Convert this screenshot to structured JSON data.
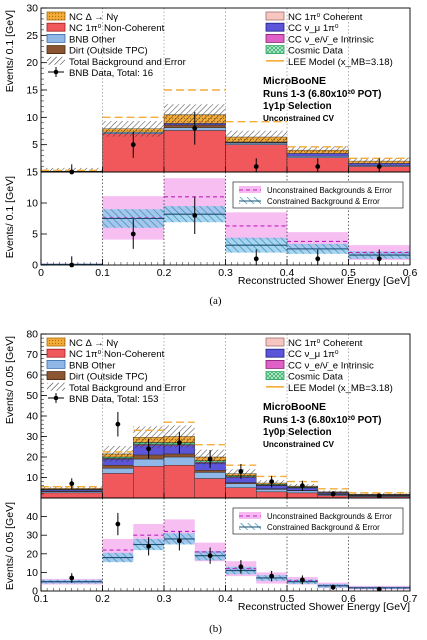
{
  "chart_data": [
    {
      "type": "bar",
      "caption": "(a)",
      "xlabel": "Reconstructed Shower Energy [GeV]",
      "ylabel_top": "Events/ 0.1 [GeV]",
      "ylabel_bottom": "Events/ 0.1 [GeV]",
      "xlim": [
        0,
        0.6
      ],
      "ylim_top": [
        0,
        30
      ],
      "ylim_bottom": [
        0,
        15
      ],
      "xticks": [
        0,
        0.1,
        0.2,
        0.3,
        0.4,
        0.5,
        0.6
      ],
      "xtick_labels": [
        "0",
        "0.1",
        "0.2",
        "0.3",
        "0.4",
        "0.5",
        "0.6"
      ],
      "yticks_top": [
        5,
        10,
        15,
        20,
        25,
        30
      ],
      "yticks_bottom": [
        0,
        5,
        10,
        15
      ],
      "bins": [
        [
          0,
          0.1
        ],
        [
          0.1,
          0.2
        ],
        [
          0.2,
          0.3
        ],
        [
          0.3,
          0.4
        ],
        [
          0.4,
          0.5
        ],
        [
          0.5,
          0.6
        ]
      ],
      "stack": [
        {
          "name": "NC 1π⁰ Non-Coherent",
          "color": "#f0585c",
          "values": [
            0.1,
            7.0,
            7.6,
            5.0,
            2.6,
            1.0
          ]
        },
        {
          "name": "BNB Other",
          "color": "#8fb8e8",
          "values": [
            0.0,
            0.3,
            0.5,
            0.3,
            0.3,
            0.2
          ]
        },
        {
          "name": "Dirt (Outside TPC)",
          "color": "#8b5532",
          "values": [
            0.0,
            0.0,
            0.5,
            0.1,
            0.0,
            0.0
          ]
        },
        {
          "name": "CC ν_μ 1π⁰",
          "color": "#5a55d9",
          "values": [
            0.0,
            0.0,
            0.3,
            0.1,
            0.5,
            0.4
          ]
        },
        {
          "name": "NC Δ → Nγ",
          "color": "#f5ac38",
          "values": [
            0.05,
            0.6,
            1.6,
            0.9,
            0.6,
            0.4
          ]
        }
      ],
      "lee_total": [
        0.3,
        10.0,
        15.0,
        9.2,
        4.6,
        2.5
      ],
      "data": [
        0,
        5,
        8,
        1,
        1,
        1
      ],
      "data_err": [
        1.4,
        2.4,
        3.0,
        1.5,
        1.5,
        1.5
      ],
      "bottom_unconstrained": [
        0.1,
        7.6,
        11.0,
        6.3,
        3.8,
        2.0
      ],
      "bottom_unconstrained_err": [
        0.1,
        3.5,
        3.0,
        2.2,
        1.5,
        1.2
      ],
      "bottom_constrained": [
        0.1,
        7.5,
        8.2,
        3.2,
        2.6,
        1.6
      ],
      "bottom_constrained_err": [
        0.1,
        1.5,
        1.3,
        1.2,
        0.8,
        0.6
      ],
      "annotations": [
        "MicroBooNE",
        "Runs 1-3 (6.80x10²⁰ POT)",
        "1γ1p Selection",
        "Unconstrained CV"
      ],
      "legend_left": [
        {
          "key": "nc_delta",
          "label": "NC Δ → Nγ"
        },
        {
          "key": "nc_noncoh",
          "label": "NC 1π⁰ Non-Coherent"
        },
        {
          "key": "bnb_other",
          "label": "BNB Other"
        },
        {
          "key": "dirt",
          "label": "Dirt (Outside TPC)"
        },
        {
          "key": "total",
          "label": "Total Background and Error"
        },
        {
          "key": "data",
          "label": "BNB Data, Total: 16"
        }
      ],
      "legend_right": [
        {
          "key": "nc_coh",
          "label": "NC 1π⁰ Coherent"
        },
        {
          "key": "cc_numu",
          "label": "CC ν_μ 1π⁰"
        },
        {
          "key": "cc_nue",
          "label": "CC ν_e/ν̄_e Intrinsic"
        },
        {
          "key": "cosmic",
          "label": "Cosmic Data"
        },
        {
          "key": "lee",
          "label": "LEE Model (x_MB=3.18)"
        }
      ],
      "legend_bottom": [
        {
          "key": "uncon",
          "label": "Unconstrained Backgrounds & Error"
        },
        {
          "key": "con",
          "label": "Constrained Background & Error"
        }
      ]
    },
    {
      "type": "bar",
      "caption": "(b)",
      "xlabel": "Reconstructed Shower Energy [GeV]",
      "ylabel_top": "Events/ 0.05 [GeV]",
      "ylabel_bottom": "Events/ 0.05 [GeV]",
      "xlim": [
        0.1,
        0.7
      ],
      "ylim_top": [
        0,
        80
      ],
      "ylim_bottom": [
        0,
        50
      ],
      "xticks": [
        0.1,
        0.2,
        0.3,
        0.4,
        0.5,
        0.6,
        0.7
      ],
      "xtick_labels": [
        "0.1",
        "0.2",
        "0.3",
        "0.4",
        "0.5",
        "0.6",
        "0.7"
      ],
      "yticks_top": [
        10,
        20,
        30,
        40,
        50,
        60,
        70,
        80
      ],
      "yticks_bottom": [
        0,
        10,
        20,
        30,
        40
      ],
      "bins": [
        [
          0.1,
          0.2
        ],
        [
          0.2,
          0.25
        ],
        [
          0.25,
          0.3
        ],
        [
          0.3,
          0.35
        ],
        [
          0.35,
          0.4
        ],
        [
          0.4,
          0.45
        ],
        [
          0.45,
          0.5
        ],
        [
          0.5,
          0.55
        ],
        [
          0.55,
          0.6
        ],
        [
          0.6,
          0.7
        ]
      ],
      "stack": [
        {
          "name": "NC 1π⁰ Non-Coherent",
          "color": "#f0585c",
          "values": [
            2.5,
            12.0,
            15.5,
            16.0,
            9.5,
            5.0,
            3.0,
            2.5,
            1.2,
            0.6
          ]
        },
        {
          "name": "BNB Other",
          "color": "#8fb8e8",
          "values": [
            0.6,
            2.5,
            3.5,
            4.0,
            3.0,
            2.0,
            1.2,
            1.0,
            0.5,
            0.4
          ]
        },
        {
          "name": "Dirt (Outside TPC)",
          "color": "#8b5532",
          "values": [
            0.3,
            1.5,
            2.0,
            1.5,
            1.0,
            0.5,
            0.3,
            0.2,
            0.1,
            0.1
          ]
        },
        {
          "name": "CC ν_μ 1π⁰",
          "color": "#5a55d9",
          "values": [
            0.6,
            3.0,
            4.5,
            4.0,
            3.5,
            2.5,
            1.5,
            1.2,
            0.6,
            0.3
          ]
        },
        {
          "name": "CC ν_e/ν̄_e Intrinsic",
          "color": "#e060c8",
          "values": [
            0.1,
            0.3,
            0.6,
            0.5,
            0.4,
            0.4,
            0.3,
            0.2,
            0.1,
            0.1
          ]
        },
        {
          "name": "Cosmic Data",
          "color": "#4ec98a",
          "values": [
            0.2,
            0.7,
            1.0,
            1.0,
            0.8,
            0.5,
            0.4,
            0.3,
            0.2,
            0.1
          ]
        },
        {
          "name": "NC Δ → Nγ",
          "color": "#f5ac38",
          "values": [
            0.4,
            1.5,
            2.5,
            3.0,
            1.8,
            1.0,
            0.6,
            0.4,
            0.3,
            0.2
          ]
        }
      ],
      "lee_total": [
        5.5,
        22.5,
        33.0,
        37.0,
        26.0,
        16.0,
        10.5,
        8.0,
        4.5,
        2.5
      ],
      "data": [
        7,
        36,
        24,
        27,
        19,
        13,
        8,
        6,
        2,
        1
      ],
      "data_err": [
        2.6,
        6.0,
        4.9,
        5.2,
        4.4,
        3.6,
        2.8,
        2.4,
        1.4,
        1.0
      ],
      "bottom_unconstrained": [
        5.0,
        22.0,
        30.0,
        32.0,
        21.0,
        12.0,
        7.0,
        5.5,
        3.0,
        1.8
      ],
      "bottom_unconstrained_err": [
        1.5,
        6.0,
        6.0,
        6.5,
        5.0,
        4.0,
        3.0,
        2.0,
        1.5,
        1.0
      ],
      "bottom_constrained": [
        5.0,
        18.0,
        25.0,
        28.0,
        19.0,
        11.0,
        7.0,
        5.0,
        2.8,
        1.7
      ],
      "bottom_constrained_err": [
        1.0,
        2.5,
        3.0,
        3.0,
        2.5,
        2.0,
        1.5,
        1.2,
        1.0,
        0.6
      ],
      "annotations": [
        "MicroBooNE",
        "Runs 1-3 (6.80x10²⁰ POT)",
        "1γ0p Selection",
        "Unconstrained CV"
      ],
      "legend_left": [
        {
          "key": "nc_delta",
          "label": "NC Δ → Nγ"
        },
        {
          "key": "nc_noncoh",
          "label": "NC 1π⁰ Non-Coherent"
        },
        {
          "key": "bnb_other",
          "label": "BNB Other"
        },
        {
          "key": "dirt",
          "label": "Dirt (Outside TPC)"
        },
        {
          "key": "total",
          "label": "Total Background and Error"
        },
        {
          "key": "data",
          "label": "BNB Data, Total: 153"
        }
      ],
      "legend_right": [
        {
          "key": "nc_coh",
          "label": "NC 1π⁰ Coherent"
        },
        {
          "key": "cc_numu",
          "label": "CC ν_μ 1π⁰"
        },
        {
          "key": "cc_nue",
          "label": "CC ν_e/ν̄_e Intrinsic"
        },
        {
          "key": "cosmic",
          "label": "Cosmic Data"
        },
        {
          "key": "lee",
          "label": "LEE Model (x_MB=3.18)"
        }
      ],
      "legend_bottom": [
        {
          "key": "uncon",
          "label": "Unconstrained Backgrounds & Error"
        },
        {
          "key": "con",
          "label": "Constrained Background & Error"
        }
      ]
    }
  ],
  "colors": {
    "nc_delta": "#f5ac38",
    "nc_noncoh": "#f0585c",
    "bnb_other": "#8fb8e8",
    "dirt": "#8b5532",
    "nc_coh": "#f8c6c0",
    "cc_numu": "#5a55d9",
    "cc_nue": "#e060c8",
    "cosmic": "#4ec98a",
    "lee": "#f5ac38",
    "unconstrained_band": "#f4a8ee",
    "constrained_band": "#8cc8e8"
  }
}
